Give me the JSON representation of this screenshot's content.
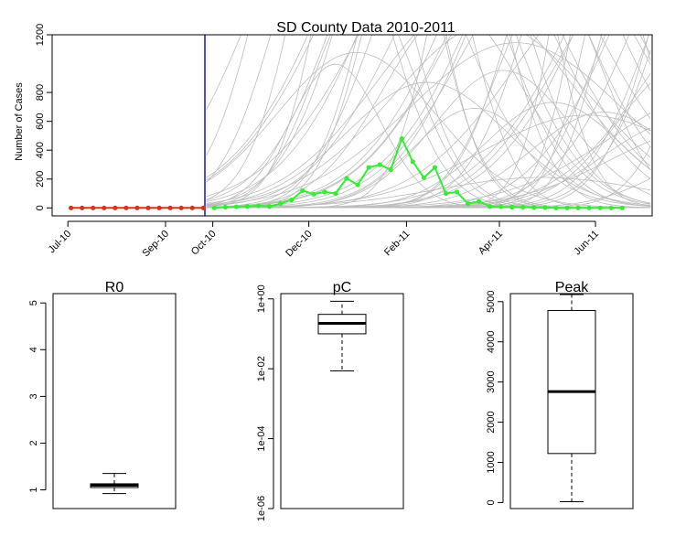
{
  "chart_data": [
    {
      "type": "line",
      "title": "SD County Data 2010-2011",
      "xlabel": "",
      "ylabel": "Number of Cases",
      "ylim": [
        0,
        1200
      ],
      "xlim": [
        "2010-07-01",
        "2011-07-01"
      ],
      "yticks": [
        0,
        200,
        400,
        600,
        800,
        1200
      ],
      "xtick_labels": [
        {
          "label": "Jul-10",
          "date": "2010-07-01"
        },
        {
          "label": "Sep-10",
          "date": "2010-09-01"
        },
        {
          "label": "Oct-10",
          "date": "2010-10-01"
        },
        {
          "label": "Dec-10",
          "date": "2010-12-01"
        },
        {
          "label": "Feb-11",
          "date": "2011-02-01"
        },
        {
          "label": "Apr-11",
          "date": "2011-04-01"
        },
        {
          "label": "Jun-11",
          "date": "2011-06-01"
        }
      ],
      "vline": {
        "date": "2010-09-26",
        "color": "#2222cc"
      },
      "series": [
        {
          "color": "#d93418",
          "points": [
            [
              "2010-07-03",
              0
            ],
            [
              "2010-07-10",
              0
            ],
            [
              "2010-07-17",
              0
            ],
            [
              "2010-07-24",
              0
            ],
            [
              "2010-07-31",
              0
            ],
            [
              "2010-08-07",
              0
            ],
            [
              "2010-08-14",
              0
            ],
            [
              "2010-08-21",
              0
            ],
            [
              "2010-08-28",
              0
            ],
            [
              "2010-09-04",
              0
            ],
            [
              "2010-09-11",
              0
            ],
            [
              "2010-09-18",
              0
            ],
            [
              "2010-09-25",
              0
            ]
          ]
        },
        {
          "color": "#33ee33",
          "points": [
            [
              "2010-10-02",
              0
            ],
            [
              "2010-10-09",
              5
            ],
            [
              "2010-10-16",
              8
            ],
            [
              "2010-10-23",
              10
            ],
            [
              "2010-10-30",
              15
            ],
            [
              "2010-11-06",
              10
            ],
            [
              "2010-11-13",
              30
            ],
            [
              "2010-11-20",
              55
            ],
            [
              "2010-11-27",
              120
            ],
            [
              "2010-12-04",
              95
            ],
            [
              "2010-12-11",
              110
            ],
            [
              "2010-12-18",
              100
            ],
            [
              "2010-12-25",
              205
            ],
            [
              "2011-01-01",
              160
            ],
            [
              "2011-01-08",
              280
            ],
            [
              "2011-01-15",
              300
            ],
            [
              "2011-01-22",
              265
            ],
            [
              "2011-01-29",
              480
            ],
            [
              "2011-02-05",
              320
            ],
            [
              "2011-02-12",
              210
            ],
            [
              "2011-02-19",
              280
            ],
            [
              "2011-02-26",
              100
            ],
            [
              "2011-03-05",
              110
            ],
            [
              "2011-03-12",
              30
            ],
            [
              "2011-03-19",
              45
            ],
            [
              "2011-03-26",
              10
            ],
            [
              "2011-04-02",
              8
            ],
            [
              "2011-04-09",
              5
            ],
            [
              "2011-04-16",
              5
            ],
            [
              "2011-04-23",
              3
            ],
            [
              "2011-04-30",
              2
            ],
            [
              "2011-05-07",
              0
            ],
            [
              "2011-05-14",
              0
            ],
            [
              "2011-05-21",
              0
            ],
            [
              "2011-05-28",
              0
            ],
            [
              "2011-06-04",
              0
            ],
            [
              "2011-06-11",
              0
            ],
            [
              "2011-06-18",
              0
            ]
          ]
        }
      ],
      "simulations": {
        "color": "#bdbdbd",
        "count": 60,
        "description_range": "grey epidemic trajectories rising from late 2010 through mid-2011"
      }
    },
    {
      "type": "boxplot",
      "title": "R0",
      "ylim": [
        0.6,
        5.2
      ],
      "yticks": [
        1,
        2,
        3,
        4,
        5
      ],
      "box": {
        "min": 0.92,
        "q1": 1.05,
        "median": 1.1,
        "q3": 1.13,
        "max": 1.35
      }
    },
    {
      "type": "boxplot",
      "title": "pC",
      "scale": "log",
      "ylim_log10": [
        -6.0,
        0.15
      ],
      "yticks": [
        {
          "label": "1e+00",
          "value": 1
        },
        {
          "label": "1e-02",
          "value": 0.01
        },
        {
          "label": "1e-04",
          "value": 0.0001
        },
        {
          "label": "1e-06",
          "value": 1e-06
        }
      ],
      "box": {
        "min": 0.0087,
        "q1": 0.1,
        "median": 0.2,
        "q3": 0.36,
        "max": 0.85
      }
    },
    {
      "type": "boxplot",
      "title": "Peak",
      "ylim": [
        -150,
        5200
      ],
      "yticks": [
        0,
        1000,
        2000,
        3000,
        4000,
        5000
      ],
      "box": {
        "min": 20,
        "q1": 1220,
        "median": 2760,
        "q3": 4780,
        "max": 5200
      }
    }
  ]
}
